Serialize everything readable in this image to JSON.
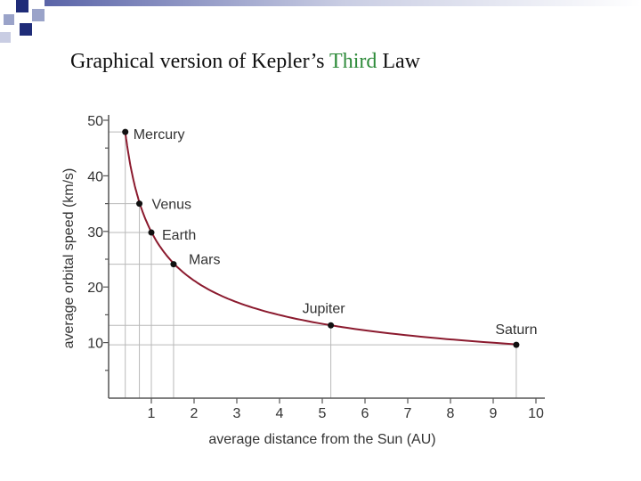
{
  "slide": {
    "title_prefix": "Graphical version of Kepler’s ",
    "title_accent": "Third",
    "title_suffix": " Law"
  },
  "colors": {
    "curve": "#8b1a2e",
    "grid": "#b9b9b9",
    "accent": "#2e8b3a",
    "decor_dark": "#1f2c78",
    "decor_light": "#9aa3c9"
  },
  "chart_data": {
    "type": "line",
    "xlabel": "average distance from the Sun (AU)",
    "ylabel": "average orbital speed (km/s)",
    "xlim": [
      0,
      10
    ],
    "ylim": [
      0,
      50
    ],
    "xticks": [
      "1",
      "2",
      "3",
      "4",
      "5",
      "6",
      "7",
      "8",
      "9",
      "10"
    ],
    "yticks": [
      "10",
      "20",
      "30",
      "40",
      "50"
    ],
    "points": [
      {
        "name": "Mercury",
        "x": 0.39,
        "y": 47.9
      },
      {
        "name": "Venus",
        "x": 0.72,
        "y": 35.0
      },
      {
        "name": "Earth",
        "x": 1.0,
        "y": 29.8
      },
      {
        "name": "Mars",
        "x": 1.52,
        "y": 24.1
      },
      {
        "name": "Jupiter",
        "x": 5.2,
        "y": 13.1
      },
      {
        "name": "Saturn",
        "x": 9.54,
        "y": 9.6
      }
    ]
  }
}
